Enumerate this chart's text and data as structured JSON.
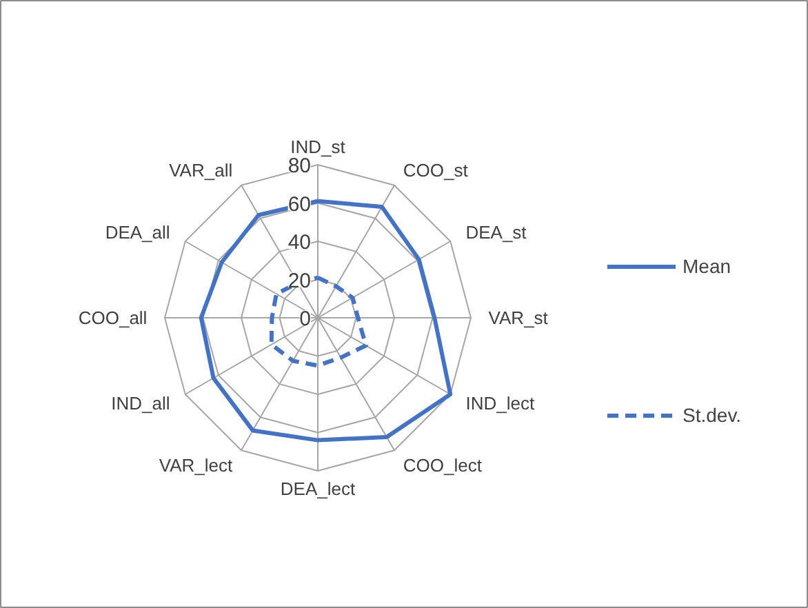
{
  "chart_data": {
    "type": "radar",
    "categories": [
      "IND_st",
      "COO_st",
      "DEA_st",
      "VAR_st",
      "IND_lect",
      "COO_lect",
      "DEA_lect",
      "VAR_lect",
      "IND_all",
      "COO_all",
      "DEA_all",
      "VAR_all"
    ],
    "ylim": [
      0,
      80
    ],
    "yticks": [
      0,
      20,
      40,
      60,
      80
    ],
    "grid": true,
    "legend": "right",
    "series": [
      {
        "name": "Mean",
        "color": "#4472c4",
        "line_style": "solid",
        "values": [
          61,
          67,
          61,
          61,
          80,
          72,
          64,
          68,
          63,
          61,
          58,
          62
        ]
      },
      {
        "name": "St.dev.",
        "color": "#4472c4",
        "line_style": "dashed",
        "values": [
          21,
          19,
          21,
          21,
          29,
          24,
          25,
          26,
          28,
          24,
          25,
          21
        ]
      }
    ]
  }
}
